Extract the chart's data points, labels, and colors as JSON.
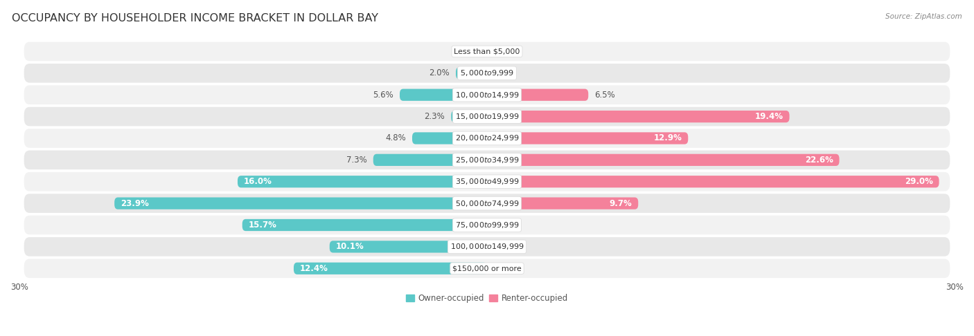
{
  "title": "OCCUPANCY BY HOUSEHOLDER INCOME BRACKET IN DOLLAR BAY",
  "source": "Source: ZipAtlas.com",
  "categories": [
    "Less than $5,000",
    "$5,000 to $9,999",
    "$10,000 to $14,999",
    "$15,000 to $19,999",
    "$20,000 to $24,999",
    "$25,000 to $34,999",
    "$35,000 to $49,999",
    "$50,000 to $74,999",
    "$75,000 to $99,999",
    "$100,000 to $149,999",
    "$150,000 or more"
  ],
  "owner_values": [
    0.0,
    2.0,
    5.6,
    2.3,
    4.8,
    7.3,
    16.0,
    23.9,
    15.7,
    10.1,
    12.4
  ],
  "renter_values": [
    0.0,
    0.0,
    6.5,
    19.4,
    12.9,
    22.6,
    29.0,
    9.7,
    0.0,
    0.0,
    0.0
  ],
  "owner_color": "#5BC8C8",
  "renter_color": "#F4819B",
  "bar_height": 0.55,
  "xlim": 30.0,
  "row_bg_colors": [
    "#f2f2f2",
    "#e8e8e8"
  ],
  "title_fontsize": 11.5,
  "label_fontsize": 8.5,
  "category_fontsize": 8,
  "legend_fontsize": 8.5,
  "axis_label_fontsize": 8.5,
  "source_fontsize": 7.5
}
